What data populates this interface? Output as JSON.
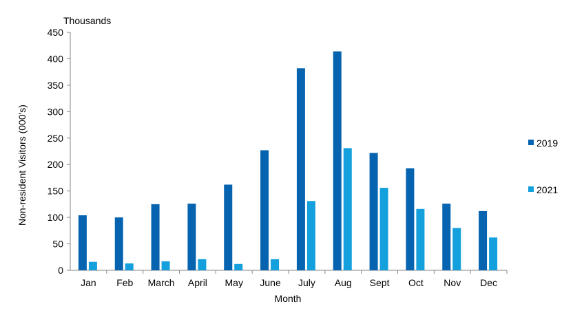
{
  "chart_data": {
    "type": "bar",
    "unit_label": "Thousands",
    "xlabel": "Month",
    "ylabel": "Non-resident Visitors (000's)",
    "categories": [
      "Jan",
      "Feb",
      "March",
      "April",
      "May",
      "June",
      "July",
      "Aug",
      "Sept",
      "Oct",
      "Nov",
      "Dec"
    ],
    "series": [
      {
        "name": "2019",
        "color": "#0563B0",
        "values": [
          104,
          100,
          125,
          126,
          162,
          227,
          382,
          414,
          222,
          193,
          126,
          112
        ]
      },
      {
        "name": "2021",
        "color": "#14A0DC",
        "values": [
          16,
          13,
          17,
          21,
          12,
          21,
          131,
          231,
          156,
          116,
          80,
          62
        ]
      }
    ],
    "ylim": [
      0,
      450
    ],
    "yticks": [
      "0",
      "50",
      "100",
      "150",
      "200",
      "250",
      "300",
      "350",
      "400",
      "450"
    ],
    "grid": false,
    "legend_position": "right"
  }
}
